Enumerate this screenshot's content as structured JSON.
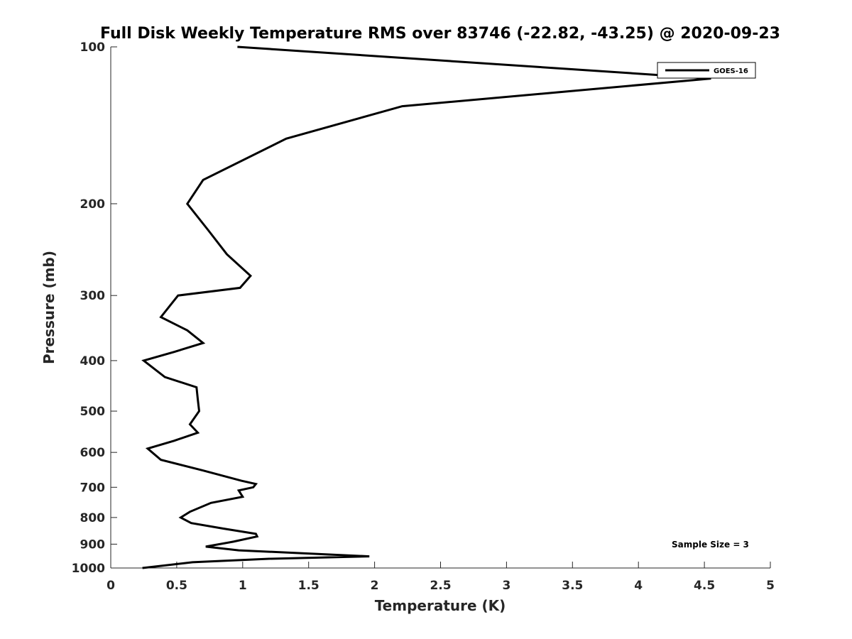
{
  "chart_data": {
    "type": "line",
    "title": "Full Disk Weekly Temperature RMS over 83746 (-22.82, -43.25) @ 2020-09-23",
    "xlabel": "Temperature (K)",
    "ylabel": "Pressure (mb)",
    "xlim": [
      0,
      5
    ],
    "ylim": [
      1000,
      100
    ],
    "yscale": "log",
    "y_reversed": true,
    "x_ticks": [
      "0",
      "0.5",
      "1",
      "1.5",
      "2",
      "2.5",
      "3",
      "3.5",
      "4",
      "4.5",
      "5"
    ],
    "y_ticks": [
      "100",
      "200",
      "300",
      "400",
      "500",
      "600",
      "700",
      "800",
      "900",
      "1000"
    ],
    "grid": false,
    "legend": {
      "placement": "top-right",
      "entries": [
        "GOES-16"
      ]
    },
    "annotation": "Sample Size = 3",
    "series": [
      {
        "name": "GOES-16",
        "color": "#000000",
        "points": [
          [
            0.96,
            100
          ],
          [
            4.55,
            115
          ],
          [
            2.21,
            130
          ],
          [
            1.33,
            150
          ],
          [
            0.7,
            180
          ],
          [
            0.58,
            200
          ],
          [
            0.74,
            225
          ],
          [
            0.88,
            250
          ],
          [
            1.06,
            275
          ],
          [
            0.98,
            290
          ],
          [
            0.51,
            300
          ],
          [
            0.38,
            330
          ],
          [
            0.58,
            350
          ],
          [
            0.7,
            370
          ],
          [
            0.48,
            385
          ],
          [
            0.25,
            400
          ],
          [
            0.41,
            430
          ],
          [
            0.65,
            450
          ],
          [
            0.66,
            475
          ],
          [
            0.67,
            500
          ],
          [
            0.6,
            530
          ],
          [
            0.66,
            550
          ],
          [
            0.48,
            570
          ],
          [
            0.28,
            590
          ],
          [
            0.38,
            620
          ],
          [
            0.7,
            650
          ],
          [
            0.99,
            680
          ],
          [
            1.1,
            690
          ],
          [
            1.08,
            700
          ],
          [
            0.97,
            710
          ],
          [
            1.0,
            730
          ],
          [
            0.76,
            750
          ],
          [
            0.6,
            780
          ],
          [
            0.53,
            800
          ],
          [
            0.61,
            820
          ],
          [
            0.85,
            840
          ],
          [
            1.1,
            860
          ],
          [
            1.11,
            870
          ],
          [
            0.93,
            890
          ],
          [
            0.72,
            910
          ],
          [
            0.97,
            925
          ],
          [
            1.96,
            950
          ],
          [
            1.2,
            960
          ],
          [
            0.62,
            975
          ],
          [
            0.24,
            1000
          ]
        ]
      }
    ]
  }
}
